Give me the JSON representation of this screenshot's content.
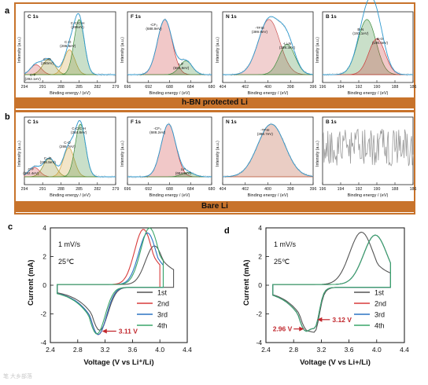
{
  "panel_letters": {
    "a": "a",
    "b": "b",
    "c": "c",
    "d": "d"
  },
  "band_labels": {
    "a": "h-BN protected Li",
    "b": "Bare Li"
  },
  "watermark": "笔 大乡部落",
  "colors": {
    "band": "#c8732b",
    "envelope": "#2f9bd1",
    "raw": "#9a9a9a",
    "c1s": "#7a1a1a",
    "cfit1": "#d24b4b",
    "cfit2": "#8c8c2a",
    "cfit3": "#cfa13a",
    "cfit4": "#3d8c3d",
    "f_cfx": "#cc3a3a",
    "f_lif": "#3d8c3d",
    "n_tfsi": "#cc5555",
    "n_li3n": "#3d8c3d",
    "b_bn": "#3d8c3d",
    "b_bo": "#cc3a3a",
    "n_bare": "#b34a2a",
    "cv1": "#555555",
    "cv2": "#d83b3b",
    "cv3": "#2b73c4",
    "cv4": "#3aa66a",
    "arrow": "#c1272d"
  },
  "chart_data": [
    {
      "id": "a-C1s",
      "type": "line",
      "title": "C 1s",
      "xlabel": "Binding energy / (eV)",
      "ylabel": "Intensity (a.u.)",
      "xlim": [
        294,
        279
      ],
      "x_ticks": [
        294,
        291,
        288,
        285,
        282,
        279
      ],
      "peaks": [
        {
          "name": "C-F",
          "x": 292.1,
          "label": "C-F\n(292.1eV)"
        },
        {
          "name": "C=O",
          "x": 290.0,
          "label": "C=O\n(290eV)"
        },
        {
          "name": "C-O",
          "x": 286.6,
          "label": "C-O\n(286.6eV)"
        },
        {
          "name": "C-C/C-H",
          "x": 285.0,
          "label": "C-C/C-H\n(285eV)"
        }
      ]
    },
    {
      "id": "a-F1s",
      "type": "line",
      "title": "F 1s",
      "xlabel": "Binding energy / (eV)",
      "ylabel": "Intensity (a.u.)",
      "xlim": [
        696,
        680
      ],
      "x_ticks": [
        696,
        692,
        688,
        684,
        680
      ],
      "peaks": [
        {
          "name": "-CF3",
          "x": 688.9,
          "label": "-CF₃\n(688.9eV)"
        },
        {
          "name": "LiF",
          "x": 684.9,
          "label": "LiF\n(684.9eV)"
        }
      ]
    },
    {
      "id": "a-N1s",
      "type": "line",
      "title": "N 1s",
      "xlabel": "Binding energy / (eV)",
      "ylabel": "Intensity (a.u.)",
      "xlim": [
        404,
        396
      ],
      "x_ticks": [
        404,
        402,
        400,
        398,
        396
      ],
      "peaks": [
        {
          "name": "-TFSI",
          "x": 399.9,
          "label": "-TFSI\n(399.9eV)"
        },
        {
          "name": "-Li3N",
          "x": 398.3,
          "label": "-Li₃N\n(398.3eV)"
        }
      ]
    },
    {
      "id": "a-B1s",
      "type": "line",
      "title": "B 1s",
      "xlabel": "Binding energy / (eV)",
      "ylabel": "Intensity (a.u.)",
      "xlim": [
        196,
        186
      ],
      "x_ticks": [
        196,
        194,
        192,
        190,
        188,
        186
      ],
      "peaks": [
        {
          "name": "B-N",
          "x": 191.1,
          "label": "B-N\n(191.1eV)"
        },
        {
          "name": "B-O",
          "x": 190.0,
          "label": "B-O\n(190.0eV)"
        }
      ]
    },
    {
      "id": "b-C1s",
      "type": "line",
      "title": "C 1s",
      "xlabel": "Binding energy / (eV)",
      "ylabel": "Intensity (a.u.)",
      "xlim": [
        294,
        279
      ],
      "x_ticks": [
        294,
        291,
        288,
        285,
        282,
        279
      ],
      "peaks": [
        {
          "name": "C-F",
          "x": 292.4,
          "label": "C-F\n(292.4eV)"
        },
        {
          "name": "C=O",
          "x": 289.9,
          "label": "C=O\n(289.9eV)"
        },
        {
          "name": "C-O",
          "x": 286.7,
          "label": "C-O\n(286.7eV)"
        },
        {
          "name": "C-C/C-H",
          "x": 284.8,
          "label": "C-C/C-H\n(284.8eV)"
        }
      ]
    },
    {
      "id": "b-F1s",
      "type": "line",
      "title": "F 1s",
      "xlabel": "Binding energy / (eV)",
      "ylabel": "Intensity (a.u.)",
      "xlim": [
        696,
        680
      ],
      "x_ticks": [
        696,
        692,
        688,
        684,
        680
      ],
      "peaks": [
        {
          "name": "-CF3",
          "x": 688.2,
          "label": "-CF₃\n(688.2eV)"
        },
        {
          "name": "LiF",
          "x": 684.5,
          "label": "LiF\n(684.5eV)"
        }
      ]
    },
    {
      "id": "b-N1s",
      "type": "line",
      "title": "N 1s",
      "xlabel": "Binding energy / (eV)",
      "ylabel": "Intensity (a.u.)",
      "xlim": [
        404,
        396
      ],
      "x_ticks": [
        404,
        402,
        400,
        398,
        396
      ],
      "peaks": [
        {
          "name": "-TFSI",
          "x": 399.7,
          "label": "-TFSI\n(399.7eV)"
        }
      ]
    },
    {
      "id": "b-B1s",
      "type": "line",
      "title": "B 1s",
      "xlabel": "Binding energy / (eV)",
      "ylabel": "Intensity (a.u.)",
      "xlim": [
        196,
        186
      ],
      "x_ticks": [
        196,
        194,
        192,
        190,
        188,
        186
      ],
      "peaks": []
    },
    {
      "id": "c-CV",
      "type": "line",
      "xlabel": "Voltage (V vs Li⁺/Li)",
      "ylabel": "Current (mA)",
      "xlim": [
        2.4,
        4.4
      ],
      "ylim": [
        -4,
        4
      ],
      "x_ticks": [
        2.4,
        2.8,
        3.2,
        3.6,
        4.0,
        4.4
      ],
      "y_ticks": [
        -4,
        -2,
        0,
        2,
        4
      ],
      "annotations": [
        "1 mV/s",
        "25℃"
      ],
      "marker_label": "3.11 V",
      "marker_x": 3.11,
      "marker_y": -3.15,
      "series": [
        {
          "name": "1st",
          "peak_ox": [
            3.92,
            2.7
          ],
          "peak_red": [
            3.12,
            -3.0
          ],
          "end": [
            4.2,
            0.5
          ]
        },
        {
          "name": "2nd",
          "peak_ox": [
            3.76,
            3.85
          ],
          "peak_red": [
            3.1,
            -3.3
          ],
          "end": [
            4.0,
            0.3
          ]
        },
        {
          "name": "3rd",
          "peak_ox": [
            3.82,
            3.6
          ],
          "peak_red": [
            3.1,
            -3.3
          ],
          "end": [
            4.05,
            0.3
          ]
        },
        {
          "name": "4th",
          "peak_ox": [
            3.85,
            3.95
          ],
          "peak_red": [
            3.08,
            -3.25
          ],
          "end": [
            4.05,
            0.3
          ]
        }
      ]
    },
    {
      "id": "d-CV",
      "type": "line",
      "xlabel": "Voltage (V vs Li+/Li)",
      "ylabel": "Current (mA)",
      "xlim": [
        2.4,
        4.4
      ],
      "ylim": [
        -4,
        4
      ],
      "x_ticks": [
        2.4,
        2.8,
        3.2,
        3.6,
        4.0,
        4.4
      ],
      "y_ticks": [
        -4,
        -2,
        0,
        2,
        4
      ],
      "annotations": [
        "1 mV/s",
        "25℃"
      ],
      "marker_labels": [
        "3.12 V",
        "2.96 V"
      ],
      "series": [
        {
          "name": "1st",
          "peak_ox": [
            3.78,
            3.65
          ],
          "peak_red": [
            3.0,
            -3.0
          ],
          "end": [
            4.2,
            0.4
          ]
        },
        {
          "name": "2nd",
          "peak_ox": [
            3.98,
            3.45
          ],
          "peak_red": [
            2.98,
            -3.05
          ],
          "end": [
            4.2,
            0.3
          ]
        },
        {
          "name": "3rd",
          "peak_ox": [
            3.98,
            3.45
          ],
          "peak_red": [
            2.98,
            -3.05
          ],
          "end": [
            4.2,
            0.3
          ]
        },
        {
          "name": "4th",
          "peak_ox": [
            3.98,
            3.45
          ],
          "peak_red": [
            2.98,
            -3.05
          ],
          "end": [
            4.2,
            0.3
          ]
        }
      ]
    }
  ]
}
